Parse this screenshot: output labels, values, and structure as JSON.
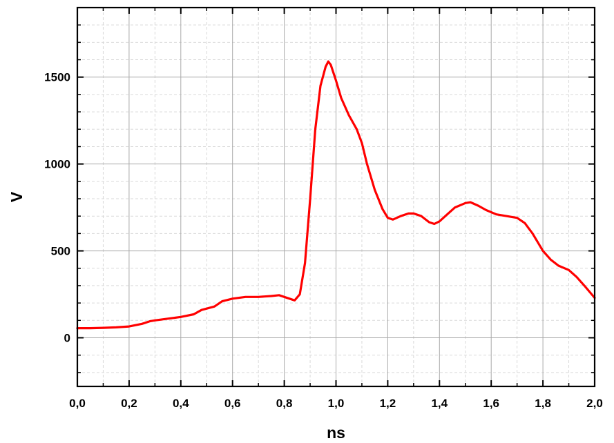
{
  "colors": {
    "series": "#ff0000",
    "axis": "#000000",
    "grid_major": "#a9a9a9",
    "grid_minor": "#d9d9d9"
  },
  "chart_data": {
    "type": "line",
    "title": "",
    "xlabel": "ns",
    "ylabel": "V",
    "xlim": [
      0.0,
      2.0
    ],
    "ylim": [
      -280,
      1900
    ],
    "x_ticks": [
      0.0,
      0.2,
      0.4,
      0.6,
      0.8,
      1.0,
      1.2,
      1.4,
      1.6,
      1.8,
      2.0
    ],
    "x_tick_labels": [
      "0,0",
      "0,2",
      "0,4",
      "0,6",
      "0,8",
      "1,0",
      "1,2",
      "1,4",
      "1,6",
      "1,8",
      "2,0"
    ],
    "y_ticks": [
      0,
      500,
      1000,
      1500
    ],
    "y_tick_labels": [
      "0",
      "500",
      "1000",
      "1500"
    ],
    "grid": true,
    "legend": "none",
    "series": [
      {
        "color": "#ff0000",
        "x": [
          0.0,
          0.05,
          0.1,
          0.15,
          0.2,
          0.25,
          0.28,
          0.3,
          0.35,
          0.4,
          0.45,
          0.48,
          0.53,
          0.56,
          0.6,
          0.65,
          0.7,
          0.75,
          0.78,
          0.8,
          0.82,
          0.84,
          0.86,
          0.88,
          0.9,
          0.92,
          0.94,
          0.96,
          0.97,
          0.98,
          1.0,
          1.02,
          1.05,
          1.08,
          1.1,
          1.12,
          1.15,
          1.18,
          1.2,
          1.22,
          1.25,
          1.28,
          1.3,
          1.33,
          1.36,
          1.38,
          1.4,
          1.43,
          1.46,
          1.5,
          1.52,
          1.55,
          1.58,
          1.62,
          1.66,
          1.7,
          1.73,
          1.76,
          1.8,
          1.83,
          1.86,
          1.9,
          1.93,
          1.96,
          2.0
        ],
        "y": [
          55,
          55,
          57,
          60,
          65,
          80,
          95,
          100,
          110,
          120,
          135,
          160,
          180,
          210,
          225,
          235,
          235,
          240,
          245,
          235,
          225,
          215,
          250,
          430,
          800,
          1200,
          1450,
          1560,
          1590,
          1570,
          1480,
          1380,
          1280,
          1200,
          1120,
          1000,
          850,
          740,
          690,
          680,
          700,
          715,
          715,
          700,
          665,
          655,
          670,
          710,
          750,
          775,
          780,
          760,
          735,
          710,
          700,
          690,
          660,
          600,
          500,
          450,
          415,
          390,
          350,
          300,
          230
        ]
      }
    ]
  }
}
